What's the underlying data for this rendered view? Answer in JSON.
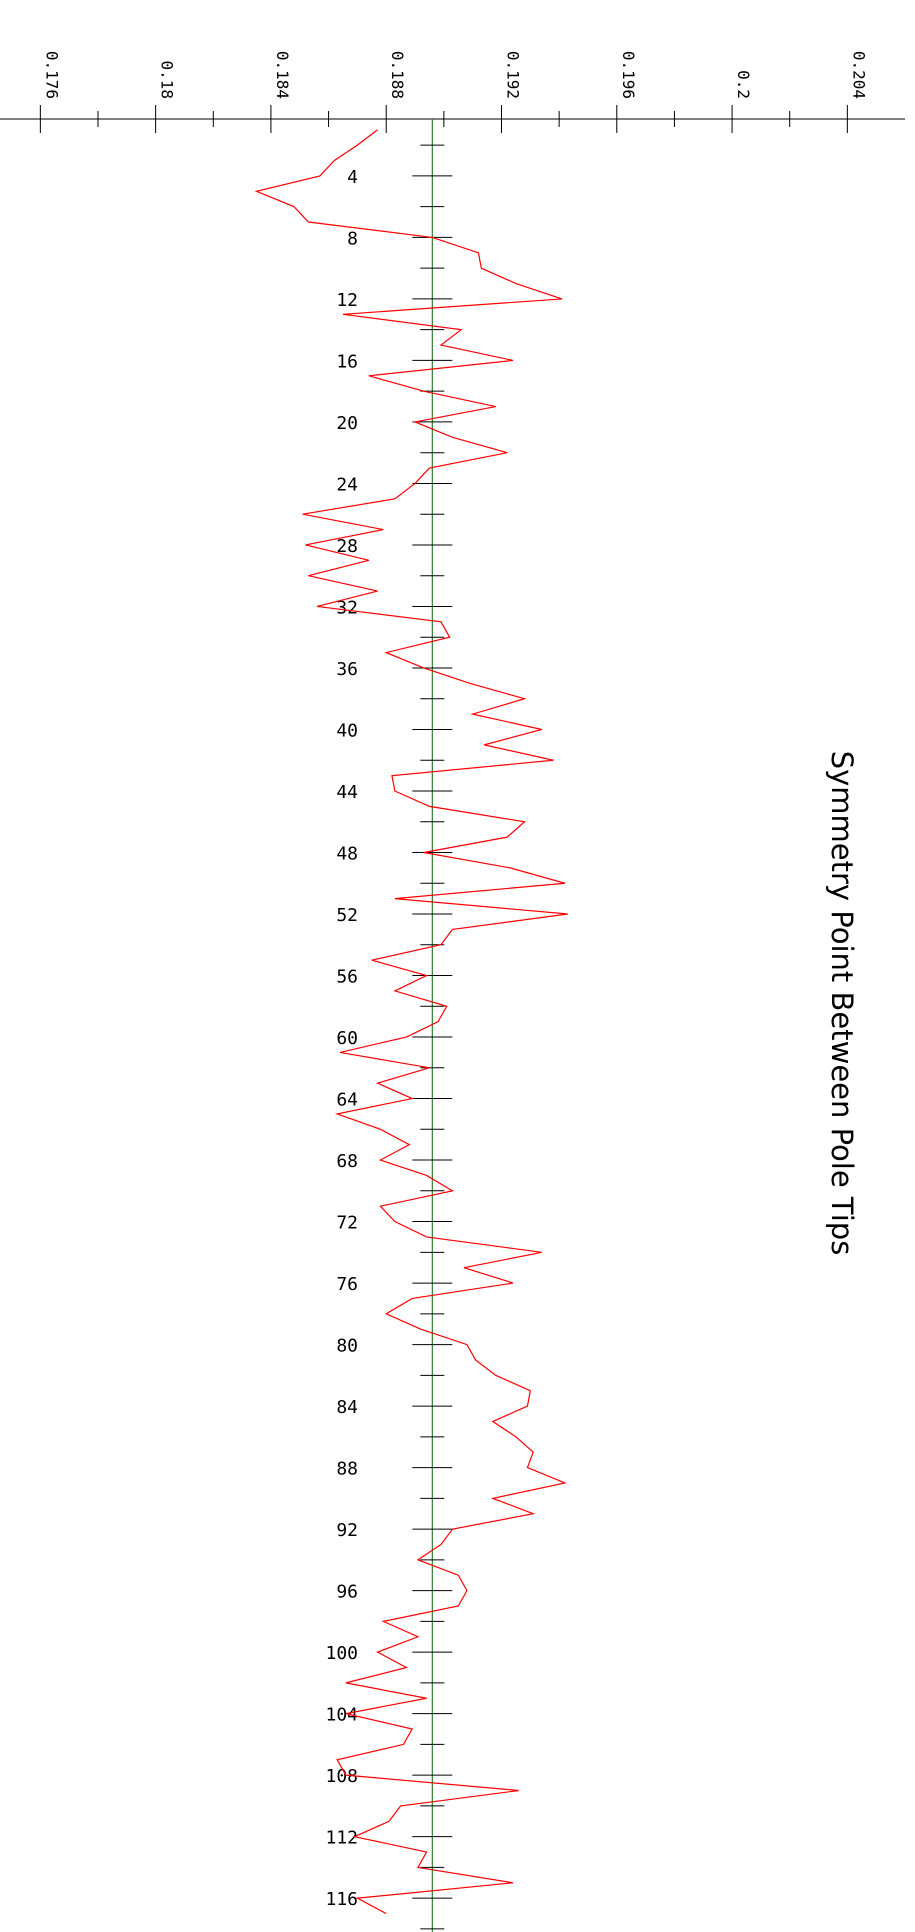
{
  "chart_data": {
    "type": "line",
    "orientation": "rotated-90",
    "title": "Symmetry Point Between Pole Tips",
    "value_axis": {
      "ticks": [
        "0.176",
        "0.18",
        "0.184",
        "0.188",
        "0.192",
        "0.196",
        "0.2",
        "0.204"
      ],
      "range": [
        0.1746,
        0.206
      ]
    },
    "index_axis": {
      "ticks": [
        "4",
        "8",
        "12",
        "16",
        "20",
        "24",
        "28",
        "32",
        "36",
        "40",
        "44",
        "48",
        "52",
        "56",
        "60",
        "64",
        "68",
        "72",
        "76",
        "80",
        "84",
        "88",
        "92",
        "96",
        "100",
        "104",
        "108",
        "112",
        "116"
      ],
      "range": [
        0.3,
        118.2
      ]
    },
    "reference_line": {
      "value": 0.1896,
      "color": "#2e7d32"
    },
    "series": [
      {
        "color": "#ff0000",
        "x": [
          1,
          2,
          3,
          4,
          5,
          6,
          7,
          8,
          9,
          10,
          11,
          12,
          13,
          14,
          15,
          16,
          17,
          18,
          19,
          20,
          21,
          22,
          23,
          24,
          25,
          26,
          27,
          28,
          29,
          30,
          31,
          32,
          33,
          34,
          35,
          36,
          37,
          38,
          39,
          40,
          41,
          42,
          43,
          44,
          45,
          46,
          47,
          48,
          49,
          50,
          51,
          52,
          53,
          54,
          55,
          56,
          57,
          58,
          59,
          60,
          61,
          62,
          63,
          64,
          65,
          66,
          67,
          68,
          69,
          70,
          71,
          72,
          73,
          74,
          75,
          76,
          77,
          78,
          79,
          80,
          81,
          82,
          83,
          84,
          85,
          86,
          87,
          88,
          89,
          90,
          91,
          92,
          93,
          94,
          95,
          96,
          97,
          98,
          99,
          100,
          101,
          102,
          103,
          104,
          105,
          106,
          107,
          108,
          109,
          110,
          111,
          112,
          113,
          114,
          115,
          116,
          117
        ],
        "values": [
          0.1877,
          0.187,
          0.1862,
          0.1857,
          0.1835,
          0.1848,
          0.1853,
          0.1896,
          0.1912,
          0.1913,
          0.1925,
          0.1941,
          0.1865,
          0.1906,
          0.1899,
          0.1924,
          0.1874,
          0.1893,
          0.1918,
          0.189,
          0.1903,
          0.1922,
          0.1895,
          0.189,
          0.1883,
          0.1851,
          0.1879,
          0.1852,
          0.1874,
          0.1853,
          0.1877,
          0.1856,
          0.1899,
          0.1902,
          0.188,
          0.1893,
          0.1909,
          0.1928,
          0.191,
          0.1934,
          0.1914,
          0.1938,
          0.1882,
          0.1883,
          0.1895,
          0.1928,
          0.1922,
          0.1893,
          0.1923,
          0.1942,
          0.1883,
          0.1943,
          0.1903,
          0.1899,
          0.1875,
          0.1894,
          0.1883,
          0.1901,
          0.1898,
          0.1887,
          0.1864,
          0.1895,
          0.1877,
          0.1889,
          0.1863,
          0.1878,
          0.1888,
          0.1878,
          0.1894,
          0.1903,
          0.1878,
          0.1883,
          0.1894,
          0.1934,
          0.1907,
          0.1924,
          0.1889,
          0.188,
          0.1892,
          0.1908,
          0.1911,
          0.1918,
          0.193,
          0.1929,
          0.1917,
          0.1925,
          0.1931,
          0.1929,
          0.1942,
          0.1917,
          0.1931,
          0.1903,
          0.1899,
          0.1891,
          0.1905,
          0.1908,
          0.1905,
          0.1879,
          0.1891,
          0.1877,
          0.1887,
          0.1866,
          0.1894,
          0.1866,
          0.1889,
          0.1886,
          0.1863,
          0.1866,
          0.1926,
          0.1885,
          0.1881,
          0.1869,
          0.1894,
          0.1891,
          0.1924,
          0.187,
          0.188
        ]
      }
    ]
  }
}
